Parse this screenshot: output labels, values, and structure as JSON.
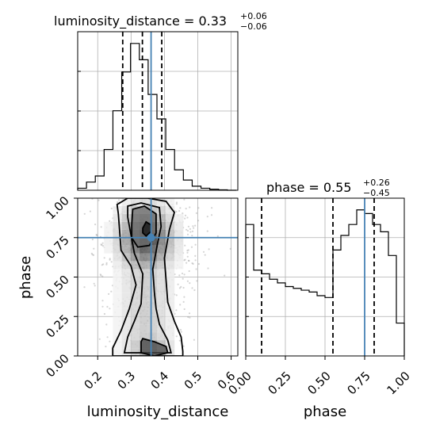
{
  "chart_data": {
    "type": "corner",
    "parameters": [
      "luminosity_distance",
      "phase"
    ],
    "truth": {
      "luminosity_distance": 0.36,
      "phase": 0.75
    },
    "titles": [
      {
        "param": "luminosity_distance",
        "prefix": "luminosity_distance = ",
        "median": "0.33",
        "plus": "+0.06",
        "minus": "−0.06"
      },
      {
        "param": "phase",
        "prefix": "phase = ",
        "median": "0.55",
        "plus": "+0.26",
        "minus": "−0.45"
      }
    ],
    "axes": {
      "luminosity_distance": {
        "label": "luminosity_distance",
        "range": [
          0.14,
          0.62
        ],
        "ticks": [
          0.2,
          0.3,
          0.4,
          0.5,
          0.6
        ],
        "tick_labels": [
          "0.2",
          "0.3",
          "0.4",
          "0.5",
          "0.6"
        ]
      },
      "phase": {
        "label": "phase",
        "range": [
          0.0,
          1.0
        ],
        "ticks": [
          0.0,
          0.25,
          0.5,
          0.75,
          1.0
        ],
        "tick_labels": [
          "0.00",
          "0.25",
          "0.50",
          "0.75",
          "1.00"
        ]
      }
    },
    "grid": true,
    "hist_luminosity_distance": {
      "edges": [
        0.14,
        0.1664,
        0.1928,
        0.2192,
        0.2456,
        0.272,
        0.2984,
        0.3248,
        0.3512,
        0.3776,
        0.404,
        0.4304,
        0.4568,
        0.4832,
        0.5096,
        0.536,
        0.5624,
        0.5888,
        0.6152
      ],
      "counts": [
        1,
        4,
        7,
        20,
        39,
        58,
        72,
        64,
        47,
        35,
        20,
        10,
        5,
        2,
        1,
        0.5,
        0.2,
        0
      ],
      "quantile_lines": [
        0.275,
        0.334,
        0.392
      ]
    },
    "hist_phase": {
      "edges": [
        0.0,
        0.05,
        0.1,
        0.15,
        0.2,
        0.25,
        0.3,
        0.35,
        0.4,
        0.45,
        0.5,
        0.55,
        0.6,
        0.65,
        0.7,
        0.75,
        0.8,
        0.85,
        0.9,
        0.95,
        1.0
      ],
      "counts": [
        72,
        47,
        45,
        42,
        40,
        38,
        37,
        36,
        35,
        33,
        32,
        58,
        66,
        72,
        80,
        78,
        72,
        68,
        55,
        18
      ],
      "quantile_lines": [
        0.1,
        0.55,
        0.81
      ]
    },
    "density_2d": {
      "x": "luminosity_distance",
      "y": "phase",
      "peak": {
        "x": 0.345,
        "y": 0.74
      }
    }
  }
}
